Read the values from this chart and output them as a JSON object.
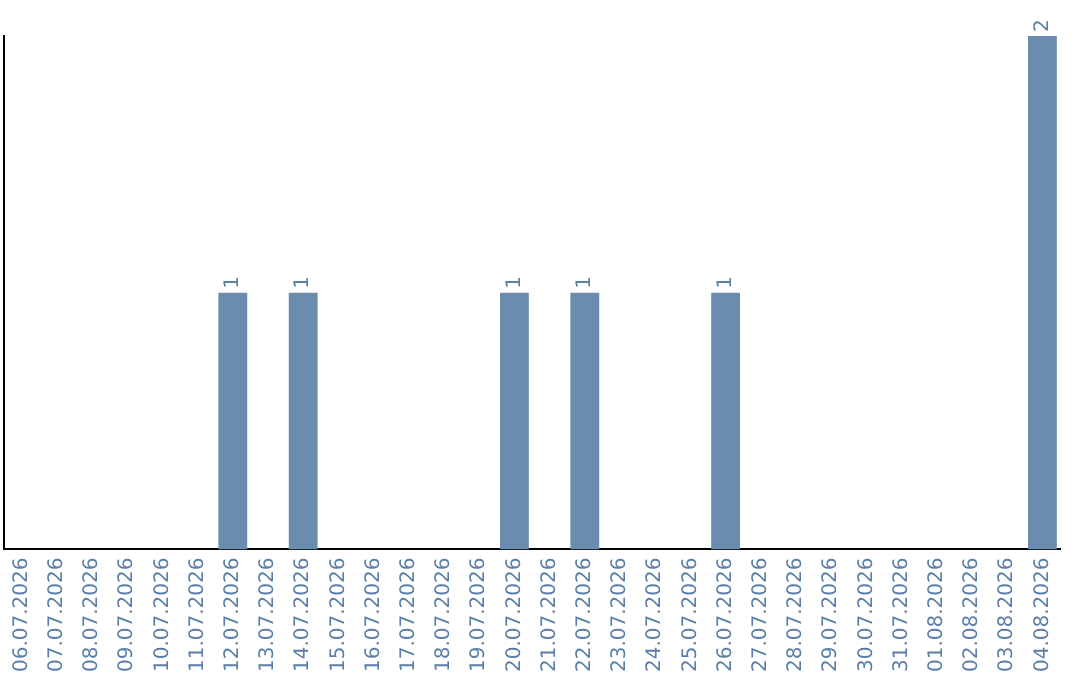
{
  "chart_data": {
    "type": "bar",
    "categories": [
      "06.07.2026",
      "07.07.2026",
      "08.07.2026",
      "09.07.2026",
      "10.07.2026",
      "11.07.2026",
      "12.07.2026",
      "13.07.2026",
      "14.07.2026",
      "15.07.2026",
      "16.07.2026",
      "17.07.2026",
      "18.07.2026",
      "19.07.2026",
      "20.07.2026",
      "21.07.2026",
      "22.07.2026",
      "23.07.2026",
      "24.07.2026",
      "25.07.2026",
      "26.07.2026",
      "27.07.2026",
      "28.07.2026",
      "29.07.2026",
      "30.07.2026",
      "31.07.2026",
      "01.08.2026",
      "02.08.2026",
      "03.08.2026",
      "04.08.2026"
    ],
    "values": [
      0,
      0,
      0,
      0,
      0,
      0,
      1,
      0,
      1,
      0,
      0,
      0,
      0,
      0,
      1,
      0,
      1,
      0,
      0,
      0,
      1,
      0,
      0,
      0,
      0,
      0,
      0,
      0,
      0,
      2
    ],
    "value_labels": [
      null,
      null,
      null,
      null,
      null,
      null,
      "1",
      null,
      "1",
      null,
      null,
      null,
      null,
      null,
      "1",
      null,
      "1",
      null,
      null,
      null,
      "1",
      null,
      null,
      null,
      null,
      null,
      null,
      null,
      null,
      "2"
    ],
    "color": "#6a8caf",
    "ylim": [
      0,
      2
    ],
    "grid": false,
    "legend": false,
    "tick_labels": "x"
  }
}
